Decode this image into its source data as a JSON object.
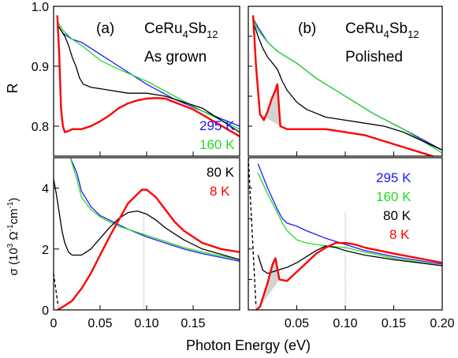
{
  "figure": {
    "xlabel": "Photon Energy (eV)",
    "ylabel_top": "R",
    "ylabel_bottom_prefix": "σ (10",
    "ylabel_bottom_sup1": "3",
    "ylabel_bottom_mid": " Ω",
    "ylabel_bottom_sup2": "-1",
    "ylabel_bottom_mid2": "cm",
    "ylabel_bottom_sup3": "-1",
    "ylabel_bottom_suffix": ")"
  },
  "panel_a": {
    "letter": "(a)",
    "compound_prefix": "CeRu",
    "compound_sub1": "4",
    "compound_mid": "Sb",
    "compound_sub2": "12",
    "condition": "As grown"
  },
  "panel_b": {
    "letter": "(b)",
    "compound_prefix": "CeRu",
    "compound_sub1": "4",
    "compound_mid": "Sb",
    "compound_sub2": "12",
    "condition": "Polished"
  },
  "legend_a_top": [
    {
      "label": "295 K",
      "color": "#1a1aff"
    },
    {
      "label": "160 K",
      "color": "#22dd22"
    }
  ],
  "legend_a_bottom": [
    {
      "label": "80 K",
      "color": "#000000"
    },
    {
      "label": "8 K",
      "color": "#ff0000"
    }
  ],
  "legend_b_bottom": [
    {
      "label": "295 K",
      "color": "#1a1aff"
    },
    {
      "label": "160 K",
      "color": "#22dd22"
    },
    {
      "label": "80 K",
      "color": "#000000"
    },
    {
      "label": "8 K",
      "color": "#ff0000"
    }
  ],
  "colors": {
    "t295": "#1a1aff",
    "t160": "#22dd22",
    "t80": "#000000",
    "t8": "#ff0000",
    "shade": "#d3d3d3"
  },
  "chart_data": [
    {
      "type": "line",
      "panel": "top-left",
      "ylabel": "R",
      "xlim": [
        0,
        0.2
      ],
      "ylim": [
        0.75,
        1.0
      ],
      "yticks": [
        0.8,
        0.9,
        1.0
      ],
      "ytick_labels": [
        "0.8",
        "0.9",
        "1.0"
      ],
      "series": [
        {
          "name": "295 K",
          "color": "#1a1aff",
          "x": [
            0.004,
            0.01,
            0.02,
            0.03,
            0.05,
            0.07,
            0.1,
            0.13,
            0.16,
            0.2
          ],
          "y": [
            0.97,
            0.955,
            0.945,
            0.94,
            0.92,
            0.9,
            0.87,
            0.845,
            0.825,
            0.8
          ]
        },
        {
          "name": "160 K",
          "color": "#22dd22",
          "x": [
            0.004,
            0.01,
            0.02,
            0.03,
            0.05,
            0.07,
            0.1,
            0.13,
            0.16,
            0.2
          ],
          "y": [
            0.975,
            0.96,
            0.945,
            0.935,
            0.91,
            0.895,
            0.875,
            0.85,
            0.825,
            0.795
          ]
        },
        {
          "name": "80 K",
          "color": "#000000",
          "x": [
            0.004,
            0.008,
            0.012,
            0.016,
            0.02,
            0.024,
            0.028,
            0.032,
            0.04,
            0.06,
            0.08,
            0.1,
            0.12,
            0.14,
            0.16,
            0.18,
            0.2
          ],
          "y": [
            0.97,
            0.96,
            0.95,
            0.935,
            0.915,
            0.9,
            0.88,
            0.87,
            0.865,
            0.86,
            0.855,
            0.855,
            0.85,
            0.84,
            0.83,
            0.81,
            0.79
          ]
        },
        {
          "name": "8 K",
          "color": "#ff0000",
          "x": [
            0.004,
            0.006,
            0.008,
            0.01,
            0.012,
            0.016,
            0.02,
            0.03,
            0.04,
            0.05,
            0.06,
            0.07,
            0.08,
            0.09,
            0.1,
            0.11,
            0.12,
            0.13,
            0.15,
            0.17,
            0.2
          ],
          "y": [
            0.985,
            0.92,
            0.83,
            0.8,
            0.79,
            0.792,
            0.795,
            0.795,
            0.8,
            0.808,
            0.818,
            0.83,
            0.838,
            0.843,
            0.846,
            0.847,
            0.846,
            0.84,
            0.828,
            0.81,
            0.783
          ]
        }
      ]
    },
    {
      "type": "line",
      "panel": "bottom-left",
      "ylabel": "σ (10³ Ω⁻¹cm⁻¹)",
      "xlim": [
        0,
        0.2
      ],
      "ylim": [
        0,
        5
      ],
      "yticks": [
        0,
        2,
        4
      ],
      "ytick_labels": [
        "0",
        "2",
        "4"
      ],
      "xticks": [
        0,
        0.05,
        0.1,
        0.15
      ],
      "xtick_labels": [
        "0",
        "0.05",
        "0.10",
        "0.15"
      ],
      "series": [
        {
          "name": "295 K",
          "color": "#1a1aff",
          "x": [
            0.018,
            0.025,
            0.03,
            0.04,
            0.05,
            0.06,
            0.07,
            0.08,
            0.1,
            0.12,
            0.14,
            0.16,
            0.2
          ],
          "y": [
            5.0,
            4.5,
            3.9,
            3.4,
            3.1,
            2.95,
            2.8,
            2.65,
            2.4,
            2.2,
            2.0,
            1.85,
            1.6
          ]
        },
        {
          "name": "160 K",
          "color": "#22dd22",
          "x": [
            0.018,
            0.025,
            0.03,
            0.04,
            0.05,
            0.06,
            0.07,
            0.08,
            0.1,
            0.12,
            0.14,
            0.16,
            0.2
          ],
          "y": [
            5.0,
            4.3,
            3.7,
            3.3,
            3.05,
            2.9,
            2.75,
            2.65,
            2.45,
            2.25,
            2.05,
            1.9,
            1.65
          ]
        },
        {
          "name": "80 K",
          "color": "#000000",
          "x": [
            0.0,
            0.003,
            0.006,
            0.009,
            0.012,
            0.016,
            0.02,
            0.025,
            0.03,
            0.04,
            0.05,
            0.06,
            0.07,
            0.08,
            0.09,
            0.1,
            0.11,
            0.12,
            0.14,
            0.16,
            0.2
          ],
          "y": [
            4.3,
            3.8,
            3.2,
            2.6,
            2.2,
            1.9,
            1.8,
            1.8,
            1.8,
            2.0,
            2.35,
            2.7,
            3.0,
            3.2,
            3.25,
            3.15,
            2.95,
            2.7,
            2.3,
            2.0,
            1.65
          ]
        },
        {
          "name": "8 K",
          "color": "#ff0000",
          "x": [
            0.004,
            0.01,
            0.015,
            0.02,
            0.026,
            0.03,
            0.04,
            0.05,
            0.06,
            0.07,
            0.08,
            0.09,
            0.095,
            0.1,
            0.11,
            0.12,
            0.13,
            0.14,
            0.16,
            0.18,
            0.2
          ],
          "y": [
            0.0,
            0.1,
            0.2,
            0.3,
            0.55,
            0.7,
            1.2,
            1.8,
            2.4,
            2.95,
            3.5,
            3.8,
            3.95,
            3.95,
            3.7,
            3.3,
            2.9,
            2.6,
            2.2,
            2.0,
            1.9
          ]
        }
      ],
      "annotations": [
        {
          "type": "dashed_extrapolation",
          "series": "8 K",
          "x": [
            0.0,
            0.005
          ],
          "y": [
            1.2,
            0.1
          ]
        },
        {
          "type": "vertical_reference_line",
          "x": 0.097
        }
      ]
    },
    {
      "type": "line",
      "panel": "top-right",
      "xlim": [
        0,
        0.2
      ],
      "ylim": [
        0.75,
        1.0
      ],
      "series": [
        {
          "name": "295 K",
          "color": "#1a1aff",
          "x": [
            0.005,
            0.01,
            0.02,
            0.03,
            0.04,
            0.05,
            0.07,
            0.1,
            0.13,
            0.16,
            0.2
          ],
          "y": [
            0.98,
            0.965,
            0.94,
            0.925,
            0.915,
            0.905,
            0.88,
            0.85,
            0.82,
            0.795,
            0.76
          ]
        },
        {
          "name": "160 K",
          "color": "#22dd22",
          "x": [
            0.005,
            0.01,
            0.02,
            0.03,
            0.04,
            0.05,
            0.07,
            0.1,
            0.13,
            0.16,
            0.2
          ],
          "y": [
            0.98,
            0.96,
            0.94,
            0.925,
            0.915,
            0.905,
            0.88,
            0.85,
            0.82,
            0.795,
            0.755
          ]
        },
        {
          "name": "80 K",
          "color": "#000000",
          "x": [
            0.005,
            0.01,
            0.015,
            0.02,
            0.025,
            0.03,
            0.035,
            0.04,
            0.05,
            0.06,
            0.08,
            0.1,
            0.12,
            0.14,
            0.16,
            0.18,
            0.2
          ],
          "y": [
            0.975,
            0.95,
            0.93,
            0.915,
            0.905,
            0.895,
            0.875,
            0.86,
            0.84,
            0.828,
            0.815,
            0.81,
            0.805,
            0.8,
            0.79,
            0.775,
            0.76
          ]
        },
        {
          "name": "8 K",
          "color": "#ff0000",
          "x": [
            0.005,
            0.008,
            0.012,
            0.016,
            0.02,
            0.024,
            0.028,
            0.03,
            0.033,
            0.04,
            0.06,
            0.08,
            0.1,
            0.12,
            0.14,
            0.16,
            0.18,
            0.2
          ],
          "y": [
            0.985,
            0.9,
            0.82,
            0.81,
            0.825,
            0.845,
            0.86,
            0.87,
            0.8,
            0.795,
            0.795,
            0.795,
            0.79,
            0.785,
            0.775,
            0.765,
            0.755,
            0.745
          ]
        }
      ]
    },
    {
      "type": "line",
      "panel": "bottom-right",
      "xlim": [
        0,
        0.2
      ],
      "ylim": [
        0,
        5
      ],
      "xticks": [
        0.05,
        0.1,
        0.15,
        0.2
      ],
      "xtick_labels": [
        "0.05",
        "0.10",
        "0.15",
        "0.20"
      ],
      "series": [
        {
          "name": "295 K",
          "color": "#1a1aff",
          "x": [
            0.01,
            0.02,
            0.03,
            0.035,
            0.04,
            0.05,
            0.06,
            0.08,
            0.1,
            0.12,
            0.15,
            0.2
          ],
          "y": [
            4.8,
            4.0,
            3.3,
            3.0,
            2.85,
            2.75,
            2.6,
            2.35,
            2.15,
            1.95,
            1.75,
            1.5
          ]
        },
        {
          "name": "160 K",
          "color": "#22dd22",
          "x": [
            0.01,
            0.02,
            0.03,
            0.035,
            0.04,
            0.05,
            0.06,
            0.08,
            0.1,
            0.12,
            0.15,
            0.2
          ],
          "y": [
            4.5,
            3.8,
            3.2,
            2.85,
            2.6,
            2.3,
            2.2,
            2.1,
            2.05,
            1.9,
            1.7,
            1.45
          ]
        },
        {
          "name": "80 K",
          "color": "#000000",
          "x": [
            0.01,
            0.015,
            0.02,
            0.025,
            0.03,
            0.04,
            0.05,
            0.06,
            0.07,
            0.08,
            0.09,
            0.1,
            0.12,
            0.15,
            0.2
          ],
          "y": [
            1.8,
            1.3,
            1.2,
            1.25,
            1.3,
            1.4,
            1.55,
            1.75,
            1.95,
            2.1,
            2.05,
            1.95,
            1.8,
            1.65,
            1.45
          ]
        },
        {
          "name": "8 K",
          "color": "#ff0000",
          "x": [
            0.008,
            0.012,
            0.016,
            0.02,
            0.025,
            0.028,
            0.032,
            0.04,
            0.05,
            0.06,
            0.07,
            0.08,
            0.09,
            0.1,
            0.11,
            0.12,
            0.15,
            0.2
          ],
          "y": [
            0.0,
            0.1,
            0.5,
            0.9,
            1.5,
            1.7,
            1.0,
            0.95,
            1.25,
            1.55,
            1.85,
            2.05,
            2.2,
            2.2,
            2.15,
            2.05,
            1.85,
            1.55
          ]
        }
      ],
      "annotations": [
        {
          "type": "dashed_extrapolation",
          "series": "8 K",
          "x": [
            0.0,
            0.008
          ],
          "y": [
            5.0,
            0.1
          ]
        },
        {
          "type": "vertical_reference_line",
          "x": 0.1
        }
      ]
    }
  ]
}
